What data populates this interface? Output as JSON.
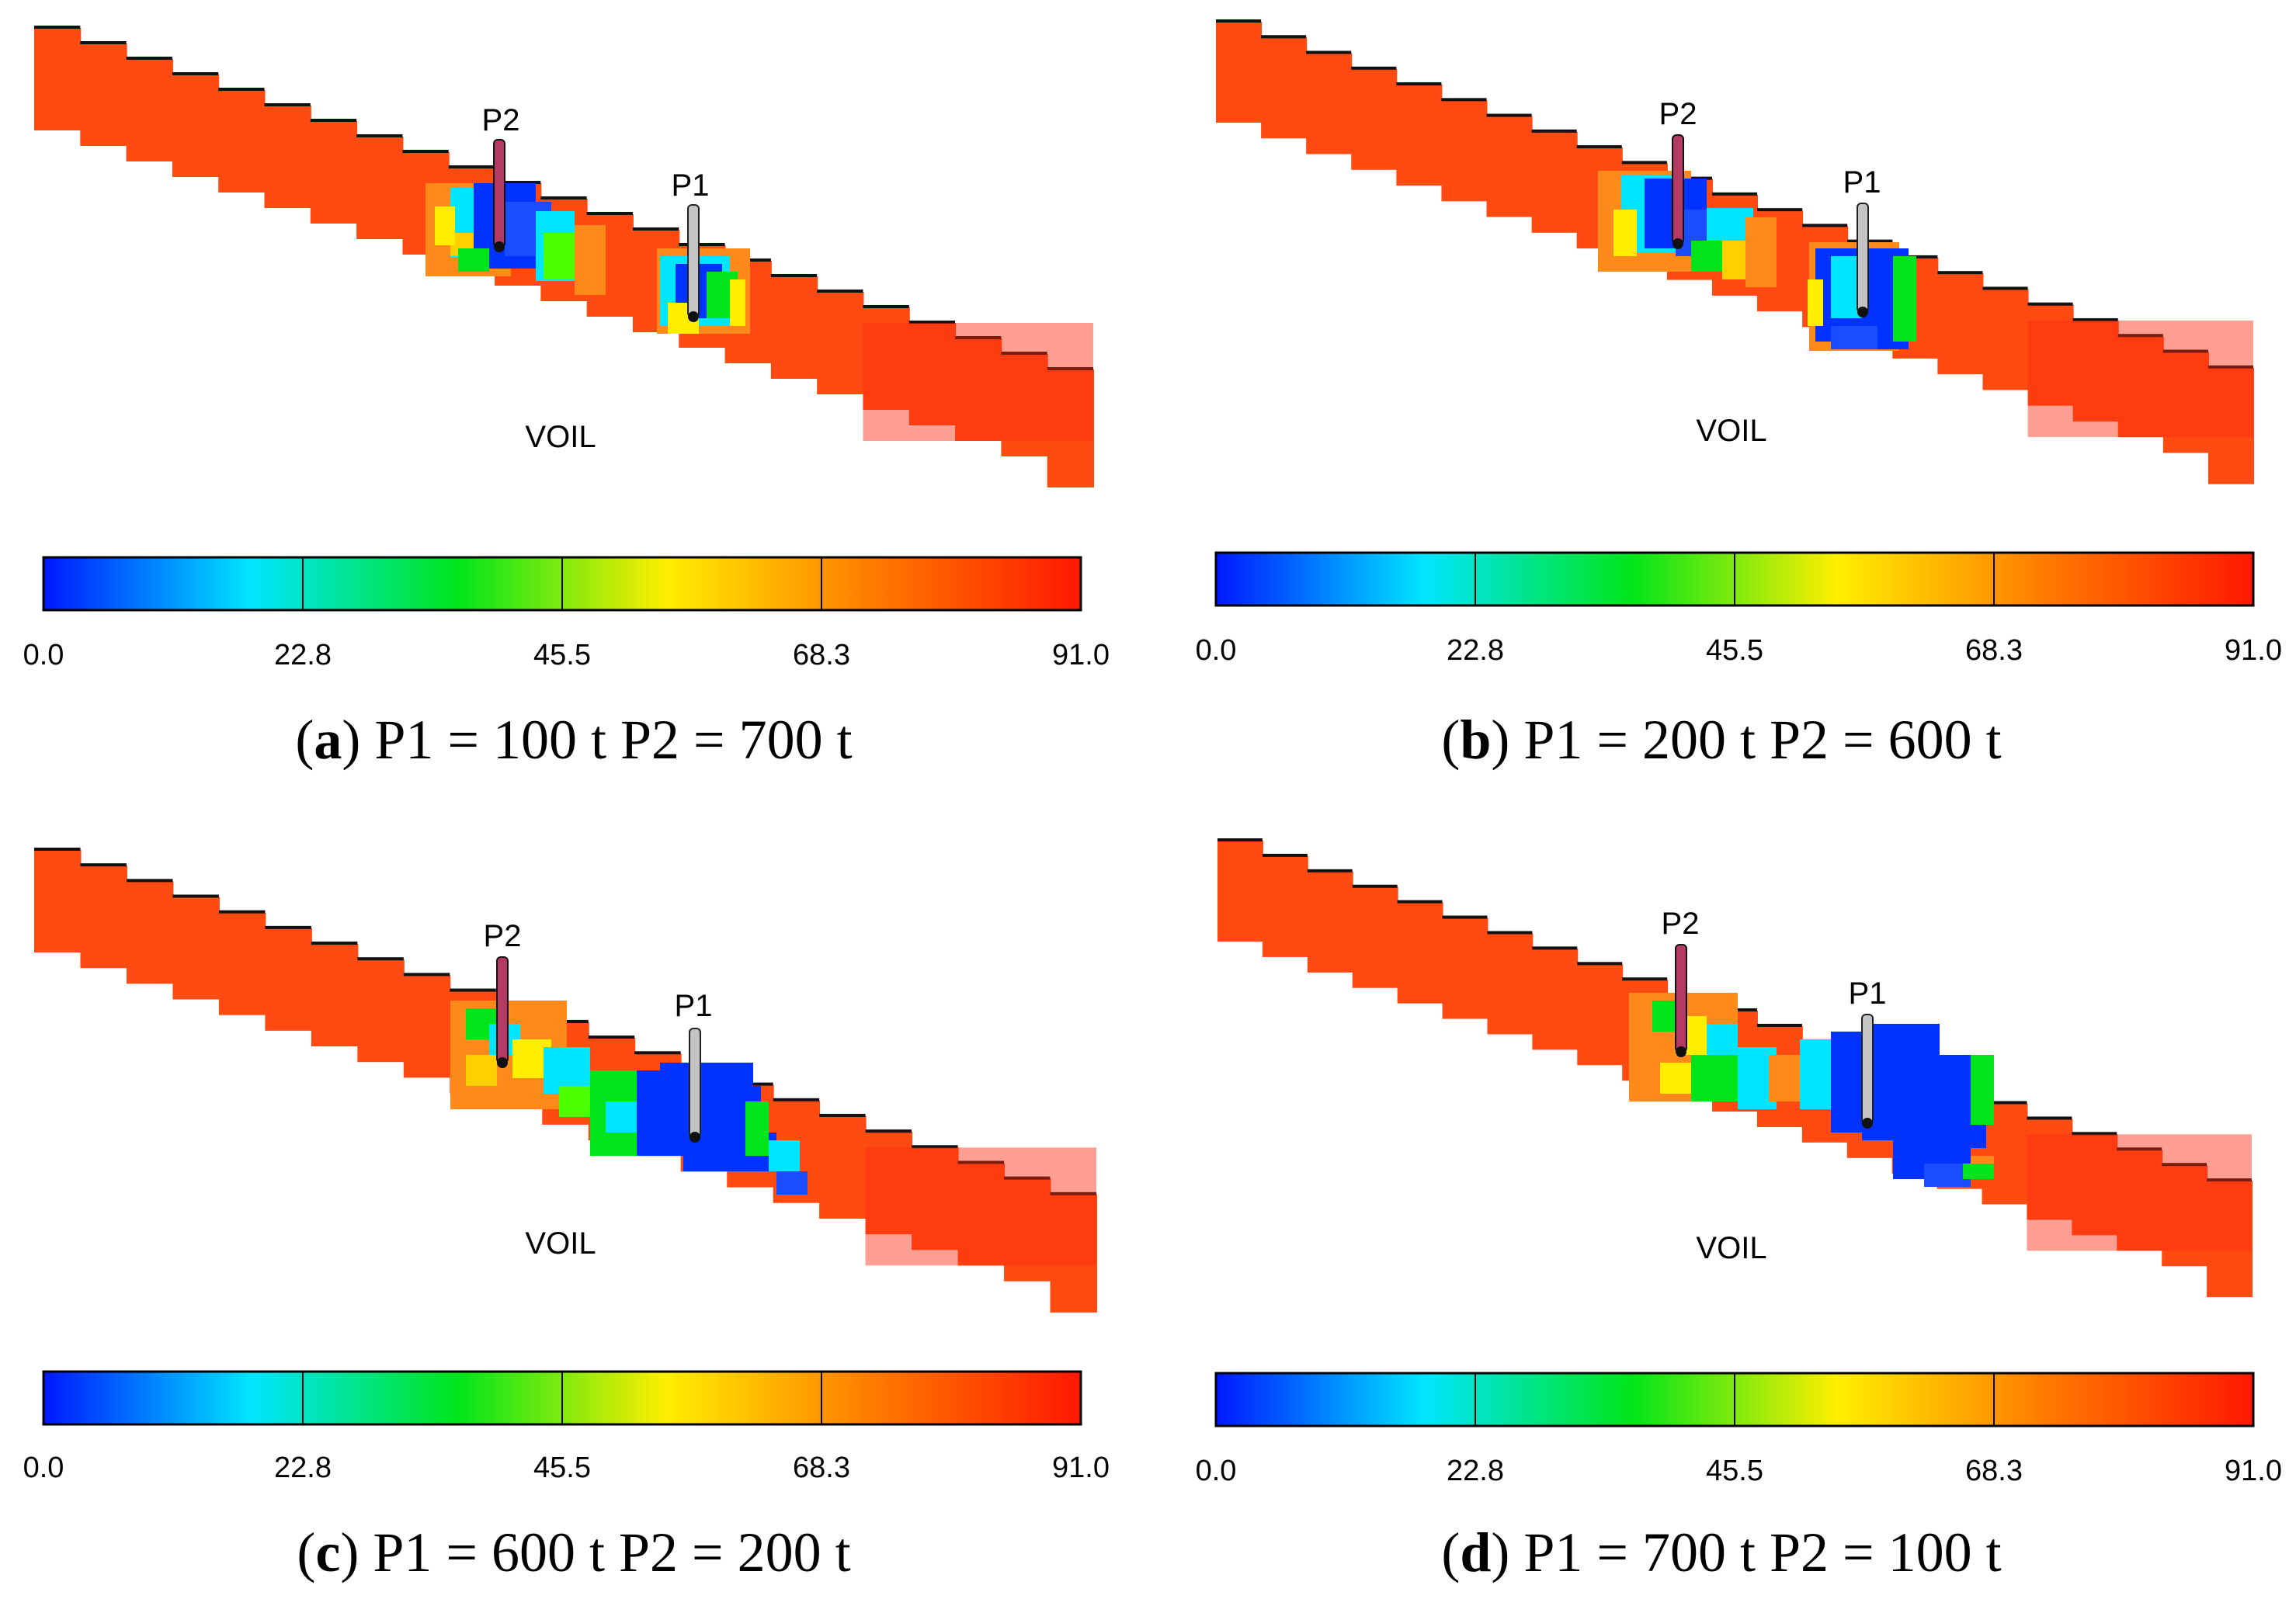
{
  "colors": {
    "oil_high": "#ff4a12",
    "well_p2": "#b43a63",
    "well_p1": "#c4c4c4",
    "scale_stops": [
      "#0018ff",
      "#00e5ff",
      "#00e51a",
      "#ffee00",
      "#ff7a00",
      "#ff1800"
    ]
  },
  "panels": [
    {
      "tag": "a",
      "caption_rest": " P1 = 100 t P2 = 700 t",
      "property_label": "VOIL",
      "wells": [
        {
          "name": "P2"
        },
        {
          "name": "P1"
        }
      ],
      "colorbar": {
        "ticks": [
          "0.0",
          "22.8",
          "45.5",
          "68.3",
          "91.0"
        ]
      }
    },
    {
      "tag": "b",
      "caption_rest": " P1 = 200 t P2 = 600 t",
      "property_label": "VOIL",
      "wells": [
        {
          "name": "P2"
        },
        {
          "name": "P1"
        }
      ],
      "colorbar": {
        "ticks": [
          "0.0",
          "22.8",
          "45.5",
          "68.3",
          "91.0"
        ]
      }
    },
    {
      "tag": "c",
      "caption_rest": " P1 = 600 t P2 = 200 t",
      "property_label": "VOIL",
      "wells": [
        {
          "name": "P2"
        },
        {
          "name": "P1"
        }
      ],
      "colorbar": {
        "ticks": [
          "0.0",
          "22.8",
          "45.5",
          "68.3",
          "91.0"
        ]
      }
    },
    {
      "tag": "d",
      "caption_rest": " P1 = 700 t P2 = 100 t",
      "property_label": "VOIL",
      "wells": [
        {
          "name": "P2"
        },
        {
          "name": "P1"
        }
      ],
      "colorbar": {
        "ticks": [
          "0.0",
          "22.8",
          "45.5",
          "68.3",
          "91.0"
        ]
      }
    }
  ]
}
